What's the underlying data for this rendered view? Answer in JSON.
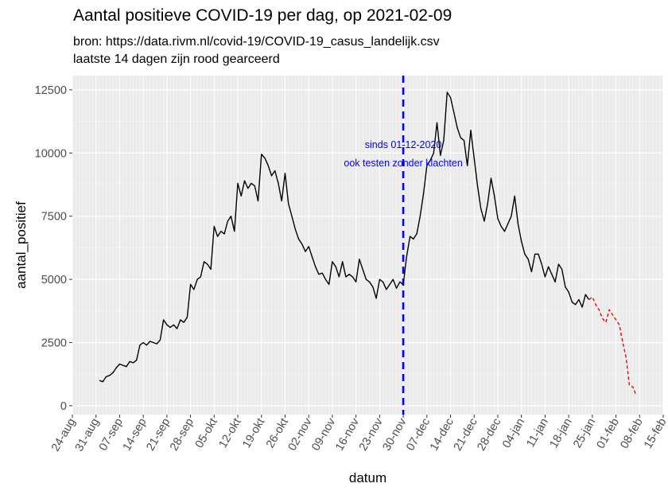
{
  "title": "Aantal positieve COVID-19 per dag, op 2021-02-09",
  "subtitle_lines": [
    "bron: https://data.rivm.nl/covid-19/COVID-19_casus_landelijk.csv",
    "laatste 14 dagen zijn rood gearceerd"
  ],
  "chart_data": {
    "type": "line",
    "xlabel": "datum",
    "ylabel": "aantal_positief",
    "ylim": [
      0,
      12500
    ],
    "y_ticks": [
      0,
      2500,
      5000,
      7500,
      10000,
      12500
    ],
    "y_tick_labels": [
      "0",
      "2500",
      "5000",
      "7500",
      "10000",
      "12500"
    ],
    "x_range_days": [
      -7,
      168
    ],
    "x_origin_date": "2020-08-31",
    "x_tick_days": [
      -7,
      0,
      7,
      14,
      21,
      28,
      35,
      42,
      49,
      56,
      63,
      70,
      77,
      84,
      91,
      98,
      105,
      112,
      119,
      126,
      133,
      140,
      147,
      154,
      161,
      168
    ],
    "x_tick_labels": [
      "24-aug",
      "31-aug",
      "07-sep",
      "14-sep",
      "21-sep",
      "28-sep",
      "05-okt",
      "12-okt",
      "19-okt",
      "26-okt",
      "02-nov",
      "09-nov",
      "16-nov",
      "23-nov",
      "30-nov",
      "07-dec",
      "14-dec",
      "21-dec",
      "28-dec",
      "04-jan",
      "11-jan",
      "18-jan",
      "25-jan",
      "01-feb",
      "08-feb",
      "15-feb"
    ],
    "grid": true,
    "series": [
      {
        "name": "aantal_positief",
        "color": "#000000",
        "style": "solid",
        "points": [
          [
            1,
            1000
          ],
          [
            2,
            950
          ],
          [
            3,
            1150
          ],
          [
            4,
            1200
          ],
          [
            5,
            1300
          ],
          [
            6,
            1500
          ],
          [
            7,
            1650
          ],
          [
            8,
            1600
          ],
          [
            9,
            1550
          ],
          [
            10,
            1750
          ],
          [
            11,
            1700
          ],
          [
            12,
            1800
          ],
          [
            13,
            2400
          ],
          [
            14,
            2500
          ],
          [
            15,
            2400
          ],
          [
            16,
            2550
          ],
          [
            17,
            2500
          ],
          [
            18,
            2450
          ],
          [
            19,
            2600
          ],
          [
            20,
            3400
          ],
          [
            21,
            3200
          ],
          [
            22,
            3100
          ],
          [
            23,
            3200
          ],
          [
            24,
            3050
          ],
          [
            25,
            3400
          ],
          [
            26,
            3300
          ],
          [
            27,
            3500
          ],
          [
            28,
            4800
          ],
          [
            29,
            4600
          ],
          [
            30,
            5000
          ],
          [
            31,
            5100
          ],
          [
            32,
            5700
          ],
          [
            33,
            5600
          ],
          [
            34,
            5400
          ],
          [
            35,
            7100
          ],
          [
            36,
            6700
          ],
          [
            37,
            6900
          ],
          [
            38,
            6800
          ],
          [
            39,
            7300
          ],
          [
            40,
            7500
          ],
          [
            41,
            6900
          ],
          [
            42,
            8800
          ],
          [
            43,
            8300
          ],
          [
            44,
            8900
          ],
          [
            45,
            8600
          ],
          [
            46,
            8800
          ],
          [
            47,
            8700
          ],
          [
            48,
            8100
          ],
          [
            49,
            9950
          ],
          [
            50,
            9800
          ],
          [
            51,
            9500
          ],
          [
            52,
            9100
          ],
          [
            53,
            9300
          ],
          [
            54,
            8800
          ],
          [
            55,
            8100
          ],
          [
            56,
            9200
          ],
          [
            57,
            8000
          ],
          [
            58,
            7500
          ],
          [
            59,
            7000
          ],
          [
            60,
            6600
          ],
          [
            61,
            6400
          ],
          [
            62,
            6100
          ],
          [
            63,
            6300
          ],
          [
            64,
            5900
          ],
          [
            65,
            5500
          ],
          [
            66,
            5200
          ],
          [
            67,
            5250
          ],
          [
            68,
            5000
          ],
          [
            69,
            4800
          ],
          [
            70,
            5700
          ],
          [
            71,
            5500
          ],
          [
            72,
            5100
          ],
          [
            73,
            5700
          ],
          [
            74,
            5100
          ],
          [
            75,
            5200
          ],
          [
            76,
            5100
          ],
          [
            77,
            4900
          ],
          [
            78,
            5800
          ],
          [
            79,
            5400
          ],
          [
            80,
            5000
          ],
          [
            81,
            4900
          ],
          [
            82,
            4700
          ],
          [
            83,
            4250
          ],
          [
            84,
            5000
          ],
          [
            85,
            4900
          ],
          [
            86,
            4600
          ],
          [
            87,
            4800
          ],
          [
            88,
            5000
          ],
          [
            89,
            4650
          ],
          [
            90,
            4900
          ],
          [
            91,
            4800
          ],
          [
            92,
            5900
          ],
          [
            93,
            6700
          ],
          [
            94,
            6600
          ],
          [
            95,
            6800
          ],
          [
            96,
            7500
          ],
          [
            97,
            8400
          ],
          [
            98,
            9500
          ],
          [
            99,
            9700
          ],
          [
            100,
            10000
          ],
          [
            101,
            11200
          ],
          [
            102,
            9900
          ],
          [
            103,
            10500
          ],
          [
            104,
            12400
          ],
          [
            105,
            12200
          ],
          [
            106,
            11600
          ],
          [
            107,
            11000
          ],
          [
            108,
            10600
          ],
          [
            109,
            10500
          ],
          [
            110,
            9500
          ],
          [
            111,
            10900
          ],
          [
            112,
            9800
          ],
          [
            113,
            8700
          ],
          [
            114,
            7800
          ],
          [
            115,
            7300
          ],
          [
            116,
            8000
          ],
          [
            117,
            9000
          ],
          [
            118,
            8300
          ],
          [
            119,
            7400
          ],
          [
            120,
            7100
          ],
          [
            121,
            6900
          ],
          [
            122,
            7200
          ],
          [
            123,
            7500
          ],
          [
            124,
            8300
          ],
          [
            125,
            7200
          ],
          [
            126,
            6500
          ],
          [
            127,
            6000
          ],
          [
            128,
            5800
          ],
          [
            129,
            5300
          ],
          [
            130,
            6000
          ],
          [
            131,
            6000
          ],
          [
            132,
            5600
          ],
          [
            133,
            5100
          ],
          [
            134,
            5500
          ],
          [
            135,
            5200
          ],
          [
            136,
            4900
          ],
          [
            137,
            5600
          ],
          [
            138,
            5400
          ],
          [
            139,
            4700
          ],
          [
            140,
            4500
          ],
          [
            141,
            4100
          ],
          [
            142,
            4000
          ],
          [
            143,
            4200
          ],
          [
            144,
            3900
          ],
          [
            145,
            4400
          ],
          [
            146,
            4200
          ]
        ]
      },
      {
        "name": "laatste 14 dagen",
        "color": "#ff0000",
        "style": "dashed",
        "points": [
          [
            146,
            4200
          ],
          [
            147,
            4300
          ],
          [
            148,
            4000
          ],
          [
            149,
            3800
          ],
          [
            150,
            3450
          ],
          [
            151,
            3300
          ],
          [
            152,
            3800
          ],
          [
            153,
            3600
          ],
          [
            154,
            3400
          ],
          [
            155,
            3200
          ],
          [
            156,
            2500
          ],
          [
            157,
            1900
          ],
          [
            158,
            800
          ],
          [
            159,
            750
          ],
          [
            160,
            400
          ]
        ]
      }
    ],
    "reference_line": {
      "day": 91,
      "color": "#0000ff",
      "style": "dashed",
      "annotation": [
        "sinds 01-12-2020",
        "ook testen zonder klachten"
      ],
      "annotation_anchor": [
        91,
        10200
      ]
    }
  }
}
